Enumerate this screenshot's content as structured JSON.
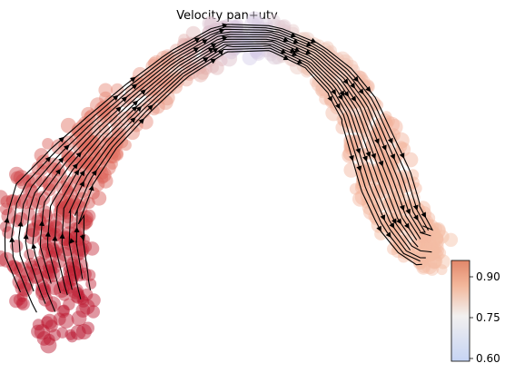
{
  "chart_data": {
    "type": "scatter",
    "title": "Velocity pan+utv",
    "xlabel": "",
    "ylabel": "",
    "grid": false,
    "overlay": "velocity-streamlines",
    "colormap": "coolwarm",
    "colorbar": {
      "placement": "right",
      "range": [
        0.59,
        0.96
      ],
      "ticks": [
        0.6,
        0.75,
        0.9
      ],
      "tick_labels": [
        "0.60",
        "0.75",
        "0.90"
      ],
      "low_color": "#c6d4f4",
      "mid_color": "#f2f0ef",
      "high_color": "#b8102b"
    },
    "colors": {
      "background": "#ffffff",
      "arrow": "#000000"
    }
  }
}
